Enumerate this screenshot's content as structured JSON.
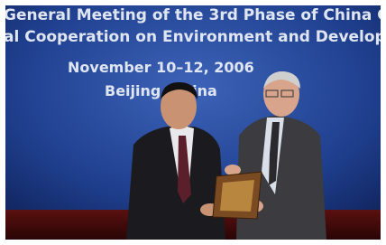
{
  "banner": {
    "lines": [
      "General Meeting of the 3rd Phase of China C",
      "al Cooperation on Environment and Develop",
      "November 10–12, 2006",
      "Beijing, China"
    ]
  }
}
